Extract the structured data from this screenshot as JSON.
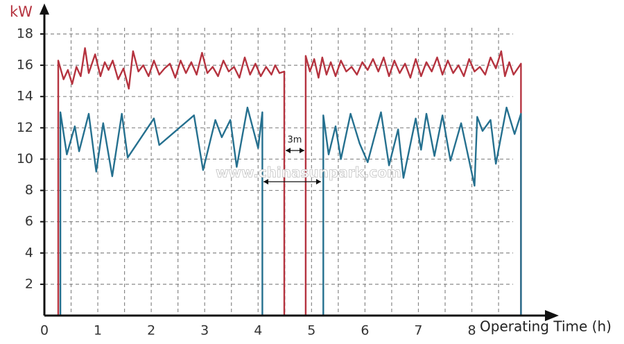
{
  "chart_data": {
    "type": "line",
    "y_label": "kW",
    "x_label": "Operating Time (h)",
    "annotation": "3m",
    "watermark": "www.chinasunpark.com",
    "xlim": [
      0,
      9.55
    ],
    "ylim": [
      0,
      19.95
    ],
    "xticks": [
      0,
      1,
      2,
      3,
      4,
      5,
      6,
      7,
      8
    ],
    "yticks": [
      2,
      4,
      6,
      8,
      10,
      12,
      14,
      16,
      18
    ],
    "grid": true,
    "series": [
      {
        "color": "#b5333f",
        "x": [
          0.26,
          0.26,
          0.36,
          0.44,
          0.52,
          0.6,
          0.68,
          0.76,
          0.83,
          0.95,
          1.05,
          1.13,
          1.2,
          1.28,
          1.38,
          1.48,
          1.58,
          1.66,
          1.76,
          1.85,
          1.95,
          2.05,
          2.15,
          2.25,
          2.35,
          2.45,
          2.55,
          2.65,
          2.75,
          2.85,
          2.95,
          3.05,
          3.15,
          3.25,
          3.35,
          3.45,
          3.55,
          3.65,
          3.75,
          3.85,
          3.95,
          4.05,
          4.15,
          4.25,
          4.32,
          4.4,
          4.49,
          4.49,
          null,
          4.89,
          4.89,
          4.97,
          5.05,
          5.13,
          5.2,
          5.28,
          5.36,
          5.45,
          5.55,
          5.65,
          5.75,
          5.85,
          5.95,
          6.05,
          6.15,
          6.25,
          6.35,
          6.45,
          6.55,
          6.65,
          6.75,
          6.85,
          6.95,
          7.05,
          7.15,
          7.25,
          7.35,
          7.45,
          7.55,
          7.65,
          7.75,
          7.85,
          7.95,
          8.05,
          8.15,
          8.25,
          8.35,
          8.45,
          8.55,
          8.62,
          8.7,
          8.78,
          8.92,
          8.92
        ],
        "values": [
          0,
          16.3,
          15.1,
          15.7,
          14.8,
          15.9,
          15.3,
          17.1,
          15.5,
          16.7,
          15.3,
          16.2,
          15.7,
          16.3,
          15.1,
          15.8,
          14.5,
          16.9,
          15.6,
          16.0,
          15.3,
          16.3,
          15.4,
          15.8,
          16.1,
          15.2,
          16.3,
          15.5,
          16.2,
          15.4,
          16.8,
          15.5,
          15.9,
          15.3,
          16.3,
          15.6,
          15.9,
          15.2,
          16.5,
          15.4,
          16.1,
          15.3,
          15.9,
          15.4,
          16.0,
          15.5,
          15.6,
          0,
          null,
          0,
          16.6,
          15.6,
          16.4,
          15.2,
          16.5,
          15.4,
          16.2,
          15.3,
          16.3,
          15.6,
          15.9,
          15.4,
          16.2,
          15.7,
          16.4,
          15.6,
          16.5,
          15.3,
          16.3,
          15.5,
          16.1,
          15.2,
          16.4,
          15.3,
          16.2,
          15.6,
          16.5,
          15.4,
          16.3,
          15.5,
          16.0,
          15.3,
          16.4,
          15.6,
          15.9,
          15.4,
          16.5,
          15.8,
          16.9,
          15.3,
          16.2,
          15.4,
          16.1,
          0
        ]
      },
      {
        "color": "#25708f",
        "x": [
          0.3,
          0.3,
          0.42,
          0.57,
          0.65,
          0.83,
          0.97,
          1.1,
          1.27,
          1.45,
          1.56,
          2.05,
          2.15,
          2.8,
          2.97,
          3.2,
          3.32,
          3.48,
          3.6,
          3.8,
          4.0,
          4.08,
          4.08,
          null,
          5.22,
          5.22,
          5.32,
          5.45,
          5.55,
          5.73,
          5.9,
          6.05,
          6.3,
          6.45,
          6.62,
          6.72,
          6.95,
          7.05,
          7.15,
          7.3,
          7.45,
          7.6,
          7.8,
          8.05,
          8.1,
          8.2,
          8.35,
          8.45,
          8.65,
          8.8,
          8.92,
          8.92
        ],
        "values": [
          0,
          13,
          10.3,
          12.1,
          10.5,
          12.9,
          9.2,
          12.3,
          8.9,
          12.9,
          10.1,
          12.6,
          10.9,
          12.8,
          9.3,
          12.5,
          11.4,
          12.5,
          9.5,
          13.3,
          10.7,
          13.0,
          0,
          null,
          0,
          12.8,
          10.3,
          12.1,
          10.0,
          12.9,
          11.0,
          9.8,
          13.0,
          9.6,
          11.9,
          8.8,
          12.6,
          10.6,
          12.9,
          10.2,
          12.8,
          9.9,
          12.3,
          8.3,
          12.7,
          11.8,
          12.5,
          9.7,
          13.3,
          11.6,
          12.9,
          0
        ]
      }
    ]
  }
}
